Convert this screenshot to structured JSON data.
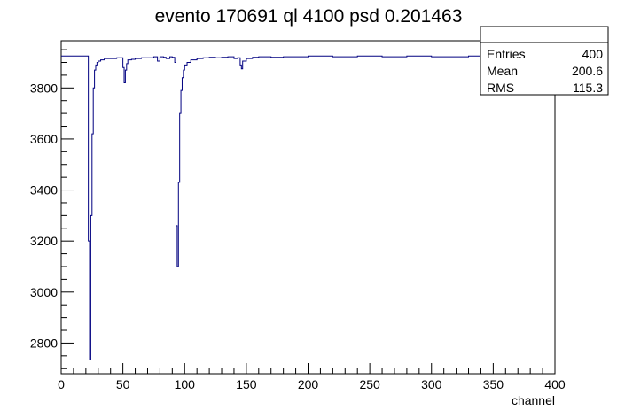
{
  "chart_data": {
    "type": "line",
    "title": "evento 170691 ql 4100 psd 0.201463",
    "xlabel": "channel",
    "ylabel": "",
    "xlim": [
      0,
      400
    ],
    "ylim": [
      2680,
      3985
    ],
    "x_ticks": [
      0,
      50,
      100,
      150,
      200,
      250,
      300,
      350,
      400
    ],
    "y_ticks": [
      2800,
      3000,
      3200,
      3400,
      3600,
      3800
    ],
    "grid": false,
    "legend": "none",
    "series": [
      {
        "color": "#000080",
        "x": [
          0,
          21,
          22,
          23,
          24,
          25,
          26,
          27,
          28,
          29,
          30,
          32,
          35,
          40,
          45,
          50,
          51,
          52,
          53,
          54,
          57,
          60,
          65,
          70,
          75,
          78,
          80,
          83,
          85,
          88,
          90,
          92,
          93,
          94,
          95,
          96,
          97,
          98,
          99,
          100,
          102,
          105,
          110,
          115,
          120,
          125,
          130,
          135,
          140,
          143,
          145,
          146,
          147,
          150,
          155,
          160,
          170,
          180,
          190,
          200,
          220,
          240,
          260,
          280,
          300,
          320,
          330,
          340,
          350,
          360,
          370,
          380,
          390,
          400
        ],
        "y": [
          3925,
          3925,
          3200,
          2735,
          3300,
          3620,
          3800,
          3870,
          3890,
          3900,
          3905,
          3910,
          3915,
          3915,
          3918,
          3880,
          3820,
          3870,
          3895,
          3910,
          3912,
          3915,
          3918,
          3918,
          3922,
          3905,
          3922,
          3920,
          3915,
          3922,
          3920,
          3900,
          3260,
          3100,
          3430,
          3700,
          3790,
          3840,
          3870,
          3890,
          3900,
          3910,
          3915,
          3918,
          3920,
          3918,
          3920,
          3922,
          3915,
          3918,
          3890,
          3875,
          3905,
          3915,
          3920,
          3922,
          3920,
          3922,
          3922,
          3925,
          3922,
          3925,
          3922,
          3925,
          3922,
          3922,
          3925,
          3922,
          3925,
          3922,
          3925,
          3925,
          3925,
          3925
        ]
      }
    ],
    "stats": {
      "rows": [
        {
          "label": "Entries",
          "value": "400"
        },
        {
          "label": "Mean",
          "value": "200.6"
        },
        {
          "label": "RMS",
          "value": "115.3"
        }
      ]
    }
  }
}
